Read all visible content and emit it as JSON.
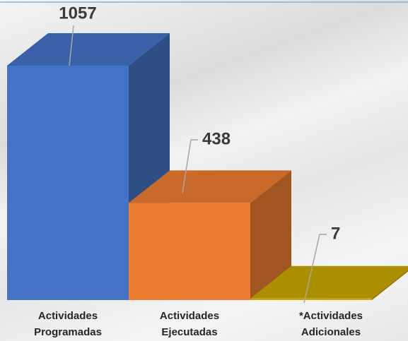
{
  "chart_data": {
    "type": "bar3d",
    "categories": [
      "Actividades Programadas",
      "Actividades Ejecutadas",
      "*Actividades Adicionales"
    ],
    "values": [
      1057,
      438,
      7
    ],
    "colors": [
      "#4472c4",
      "#ed7d31",
      "#c9a800"
    ]
  }
}
